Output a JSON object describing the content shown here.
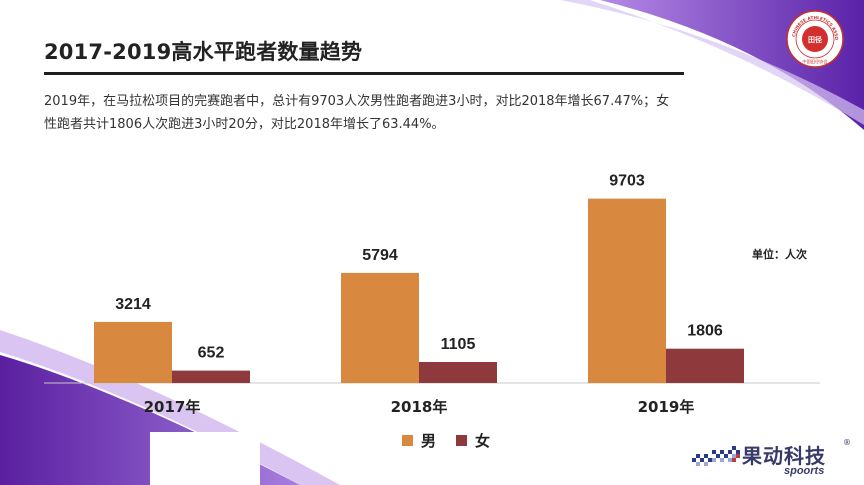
{
  "title": "2017-2019高水平跑者数量趋势",
  "description_lines": [
    "2019年，在马拉松项目的完赛跑者中，总计有9703人次男性跑者跑进3小时，对比2018年增长67.47%；女",
    "性跑者共计1806人次跑进3小时20分，对比2018年增长了63.44%。"
  ],
  "unit_label": "单位：人次",
  "brand": {
    "name": "果动科技",
    "sub": "spoorts",
    "reg": "®"
  },
  "logo": {
    "ring_text": "CHINESE ATHLETICS ASSOCIATION",
    "inner_text": "中国田径协会",
    "center_text": "田径"
  },
  "colors": {
    "male": "#d98840",
    "female": "#8e3a3c",
    "accent_purple": "#6a2fb5"
  },
  "chart_data": {
    "type": "bar",
    "categories": [
      "2017年",
      "2018年",
      "2019年"
    ],
    "series": [
      {
        "name": "男",
        "values": [
          3214,
          5794,
          9703
        ],
        "labels": [
          "3214",
          "5794",
          "9703"
        ]
      },
      {
        "name": "女",
        "values": [
          652,
          1105,
          1806
        ],
        "labels": [
          "652",
          "1105",
          "1806"
        ]
      }
    ],
    "ylim": [
      0,
      10000
    ],
    "grid": false,
    "legend_position": "bottom",
    "title": "",
    "xlabel": "",
    "ylabel": ""
  }
}
